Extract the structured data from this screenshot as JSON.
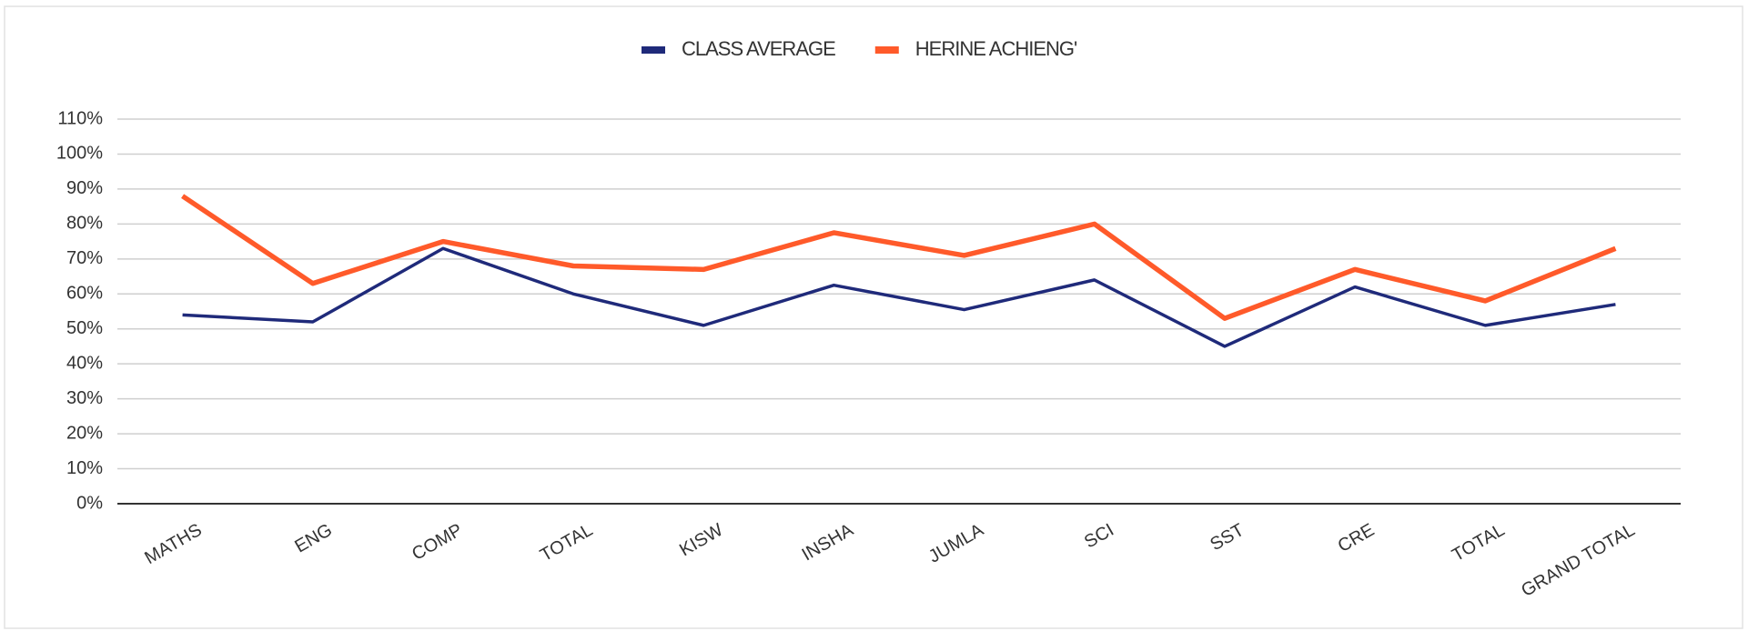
{
  "chart_data": {
    "type": "line",
    "categories": [
      "MATHS",
      "ENG",
      "COMP",
      "TOTAL",
      "KISW",
      "INSHA",
      "JUMLA",
      "SCI",
      "SST",
      "CRE",
      "TOTAL",
      "GRAND TOTAL"
    ],
    "series": [
      {
        "name": "CLASS AVERAGE",
        "color": "#1f2a7a",
        "values": [
          54,
          52,
          73,
          60,
          51,
          62.5,
          55.5,
          64,
          45,
          62,
          51,
          57
        ]
      },
      {
        "name": "HERINE ACHIENG'",
        "color": "#ff5a2a",
        "values": [
          88,
          63,
          75,
          68,
          67,
          77.5,
          71,
          80,
          53,
          67,
          58,
          73
        ]
      }
    ],
    "ylim": [
      0,
      110
    ],
    "yticks": [
      {
        "value": 0,
        "label": "0%"
      },
      {
        "value": 10,
        "label": "10%"
      },
      {
        "value": 20,
        "label": "20%"
      },
      {
        "value": 30,
        "label": "30%"
      },
      {
        "value": 40,
        "label": "40%"
      },
      {
        "value": 50,
        "label": "50%"
      },
      {
        "value": 60,
        "label": "60%"
      },
      {
        "value": 70,
        "label": "70%"
      },
      {
        "value": 80,
        "label": "80%"
      },
      {
        "value": 90,
        "label": "90%"
      },
      {
        "value": 100,
        "label": "100%"
      },
      {
        "value": 110,
        "label": "110%"
      }
    ],
    "grid": true,
    "legend": "top"
  }
}
